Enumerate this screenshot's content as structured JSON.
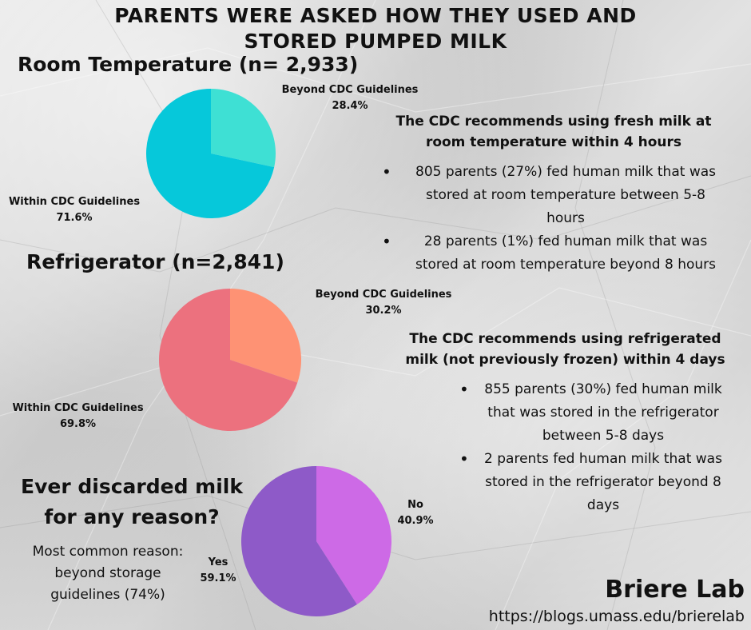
{
  "title": {
    "line1": "PARENTS WERE ASKED  HOW THEY USED AND",
    "line2": "STORED PUMPED MILK"
  },
  "chart_data": [
    {
      "type": "pie",
      "title": "Room Temperature (n= 2,933)",
      "slices": [
        {
          "label": "Beyond CDC Guidelines",
          "value": 28.4,
          "display": "28.4%",
          "color": "#3ee0d4"
        },
        {
          "label": "Within CDC Guidelines",
          "value": 71.6,
          "display": "71.6%",
          "color": "#06c8da"
        }
      ]
    },
    {
      "type": "pie",
      "title": "Refrigerator (n=2,841)",
      "slices": [
        {
          "label": "Beyond CDC Guidelines",
          "value": 30.2,
          "display": "30.2%",
          "color": "#fe9274"
        },
        {
          "label": "Within CDC Guidelines",
          "value": 69.8,
          "display": "69.8%",
          "color": "#ec717e"
        }
      ]
    },
    {
      "type": "pie",
      "title": "Ever discarded milk for any reason?",
      "slices": [
        {
          "label": "No",
          "value": 40.9,
          "display": "40.9%",
          "color": "#cd6ae6"
        },
        {
          "label": "Yes",
          "value": 59.1,
          "display": "59.1%",
          "color": "#8e5ac8"
        }
      ]
    }
  ],
  "room_temp": {
    "recommendation": "The CDC recommends using fresh milk at room temperature within 4 hours",
    "bullets": [
      "805 parents (27%) fed human milk that was stored at room temperature between 5-8 hours",
      "28 parents (1%) fed human milk that was stored at room temperature beyond 8 hours"
    ]
  },
  "refrigerator": {
    "recommendation": "The CDC recommends using refrigerated milk (not previously frozen) within 4 days",
    "bullets": [
      "855 parents (30%) fed human milk that was stored in the refrigerator between 5-8 days",
      "2 parents fed human milk that was stored in the refrigerator beyond 8 days"
    ]
  },
  "discard": {
    "question_line1": "Ever discarded milk",
    "question_line2": "for any reason?",
    "reason": "Most common reason: beyond storage guidelines (74%)"
  },
  "footer": {
    "lab": "Briere Lab",
    "url": "https://blogs.umass.edu/brierelab"
  }
}
